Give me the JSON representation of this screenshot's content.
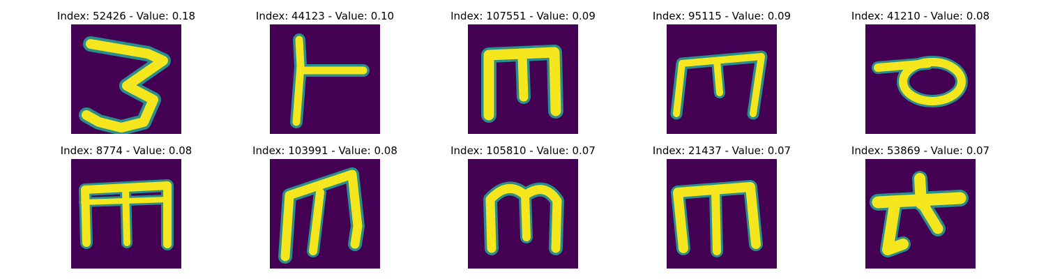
{
  "colors": {
    "background": "#440154",
    "stroke_core": "#f5e61e",
    "stroke_edge": "#2a8e8c"
  },
  "panels": [
    {
      "title": "Index: 52426 - Value: 0.18"
    },
    {
      "title": "Index: 44123 - Value: 0.10"
    },
    {
      "title": "Index: 107551 - Value: 0.09"
    },
    {
      "title": "Index: 95115 - Value: 0.09"
    },
    {
      "title": "Index: 41210 - Value: 0.08"
    },
    {
      "title": "Index: 8774 - Value: 0.08"
    },
    {
      "title": "Index: 103991 - Value: 0.08"
    },
    {
      "title": "Index: 105810 - Value: 0.07"
    },
    {
      "title": "Index: 21437 - Value: 0.07"
    },
    {
      "title": "Index: 53869 - Value: 0.07"
    }
  ]
}
